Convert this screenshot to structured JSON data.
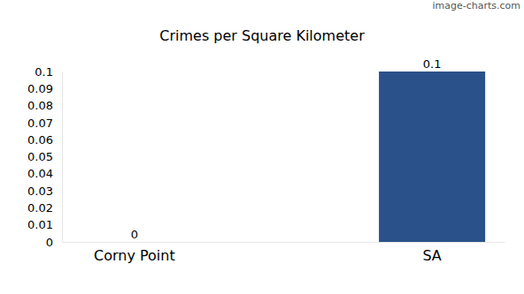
{
  "chart_data": {
    "type": "bar",
    "title": "Crimes per Square Kilometer",
    "annotations": [
      "image-charts.com"
    ],
    "categories": [
      "Corny Point",
      "SA"
    ],
    "values": [
      0,
      0.1
    ],
    "color": "#2a5189",
    "ylim": [
      0,
      0.1
    ],
    "yticks": [
      0,
      0.01,
      0.02,
      0.03,
      0.04,
      0.05,
      0.06,
      0.07,
      0.08,
      0.09,
      0.1
    ],
    "grid": false,
    "data_labels": true
  }
}
